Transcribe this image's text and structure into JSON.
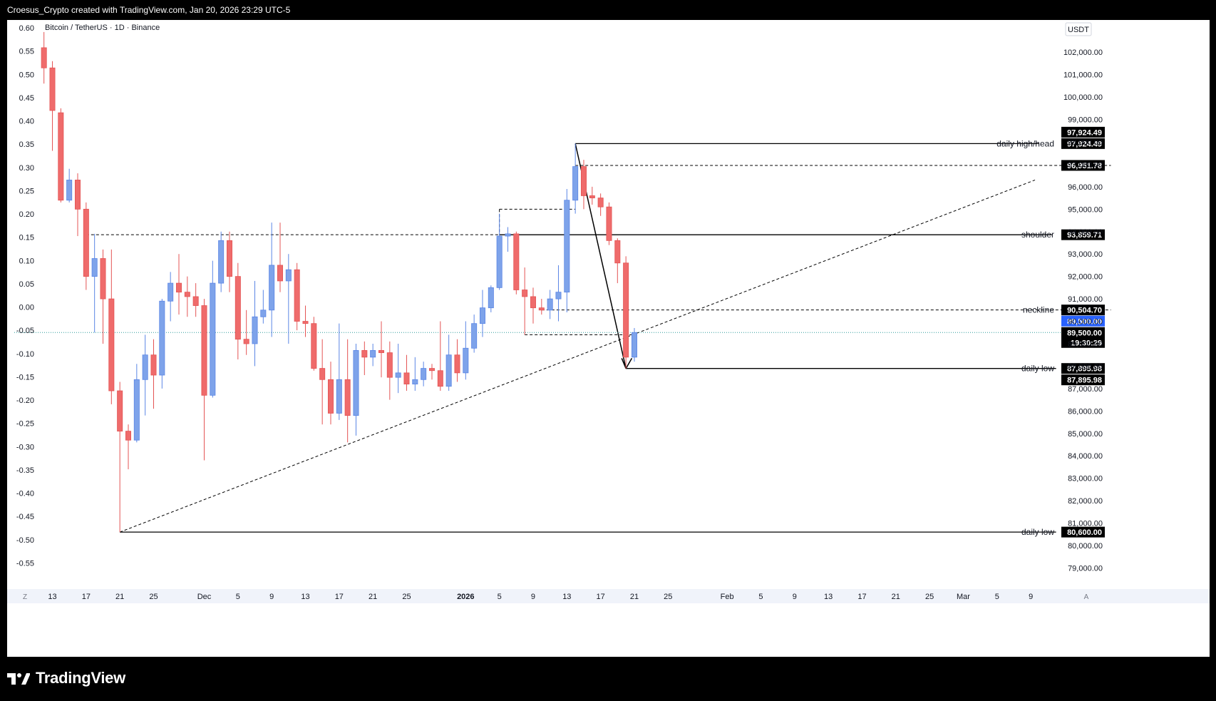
{
  "header": {
    "attribution": "Croesus_Crypto created with TradingView.com, Jan 20, 2026 23:29 UTC-5"
  },
  "footer": {
    "logo_text": "TradingView"
  },
  "symbol": "Bitcoin / TetherUS · 1D · Binance",
  "currency": "USDT",
  "left_axis_ticks": [
    "0.60",
    "0.55",
    "0.50",
    "0.45",
    "0.40",
    "0.35",
    "0.30",
    "0.25",
    "0.20",
    "0.15",
    "0.10",
    "0.05",
    "0.00",
    "-0.05",
    "-0.10",
    "-0.15",
    "-0.20",
    "-0.25",
    "-0.30",
    "-0.35",
    "-0.40",
    "-0.45",
    "-0.50",
    "-0.55"
  ],
  "right_axis_ticks": [
    "102,000.00",
    "101,000.00",
    "100,000.00",
    "99,000.00",
    "98,000.00",
    "97,000.00",
    "96,000.00",
    "95,000.00",
    "94,000.00",
    "93,000.00",
    "92,000.00",
    "91,000.00",
    "90,000.00",
    "89,000.00",
    "88,000.00",
    "87,000.00",
    "86,000.00",
    "85,000.00",
    "84,000.00",
    "83,000.00",
    "82,000.00",
    "81,000.00",
    "80,000.00",
    "79,000.00"
  ],
  "x_axis_labels": [
    {
      "text": "13",
      "bold": false,
      "day": 0
    },
    {
      "text": "17",
      "bold": false,
      "day": 4
    },
    {
      "text": "21",
      "bold": false,
      "day": 8
    },
    {
      "text": "25",
      "bold": false,
      "day": 12
    },
    {
      "text": "Dec",
      "bold": false,
      "day": 18
    },
    {
      "text": "5",
      "bold": false,
      "day": 22
    },
    {
      "text": "9",
      "bold": false,
      "day": 26
    },
    {
      "text": "13",
      "bold": false,
      "day": 30
    },
    {
      "text": "17",
      "bold": false,
      "day": 34
    },
    {
      "text": "21",
      "bold": false,
      "day": 38
    },
    {
      "text": "25",
      "bold": false,
      "day": 42
    },
    {
      "text": "2026",
      "bold": true,
      "day": 49
    },
    {
      "text": "5",
      "bold": false,
      "day": 53
    },
    {
      "text": "9",
      "bold": false,
      "day": 57
    },
    {
      "text": "13",
      "bold": false,
      "day": 61
    },
    {
      "text": "17",
      "bold": false,
      "day": 65
    },
    {
      "text": "21",
      "bold": false,
      "day": 69
    },
    {
      "text": "25",
      "bold": false,
      "day": 73
    },
    {
      "text": "Feb",
      "bold": false,
      "day": 80
    },
    {
      "text": "5",
      "bold": false,
      "day": 84
    },
    {
      "text": "9",
      "bold": false,
      "day": 88
    },
    {
      "text": "13",
      "bold": false,
      "day": 92
    },
    {
      "text": "17",
      "bold": false,
      "day": 96
    },
    {
      "text": "21",
      "bold": false,
      "day": 100
    },
    {
      "text": "25",
      "bold": false,
      "day": 104
    },
    {
      "text": "Mar",
      "bold": false,
      "day": 108
    },
    {
      "text": "5",
      "bold": false,
      "day": 112
    },
    {
      "text": "9",
      "bold": false,
      "day": 116
    }
  ],
  "axis_corner_left": "Z",
  "axis_corner_right": "A",
  "colors": {
    "up": "#7ea3ea",
    "down": "#ef6b6b",
    "up_wick": "#5b86e5",
    "down_wick": "#e45454",
    "line": "#000000",
    "current": "#2962ff"
  },
  "chart_data": {
    "type": "candlestick",
    "title": "Bitcoin / TetherUS · 1D · Binance",
    "timeframe": "1D",
    "ylim": [
      78400,
      102600
    ],
    "x_note": "day index, 0 = Nov 13 2025",
    "candles": [
      {
        "d": -1,
        "o": 102200,
        "h": 102900,
        "l": 100600,
        "c": 101300
      },
      {
        "d": 0,
        "o": 101300,
        "h": 101600,
        "l": 97600,
        "c": 99400
      },
      {
        "d": 1,
        "o": 99300,
        "h": 99500,
        "l": 95300,
        "c": 95400
      },
      {
        "d": 2,
        "o": 95400,
        "h": 96800,
        "l": 95300,
        "c": 96300
      },
      {
        "d": 3,
        "o": 96300,
        "h": 96600,
        "l": 93800,
        "c": 95000
      },
      {
        "d": 4,
        "o": 95000,
        "h": 95300,
        "l": 91400,
        "c": 92000
      },
      {
        "d": 5,
        "o": 92000,
        "h": 93900,
        "l": 89500,
        "c": 92800
      },
      {
        "d": 6,
        "o": 92800,
        "h": 93200,
        "l": 89000,
        "c": 91000
      },
      {
        "d": 7,
        "o": 91000,
        "h": 93200,
        "l": 86300,
        "c": 86900
      },
      {
        "d": 8,
        "o": 86900,
        "h": 87300,
        "l": 80600,
        "c": 85100
      },
      {
        "d": 9,
        "o": 85100,
        "h": 85400,
        "l": 83400,
        "c": 84700
      },
      {
        "d": 10,
        "o": 84700,
        "h": 88100,
        "l": 84600,
        "c": 87400
      },
      {
        "d": 11,
        "o": 87400,
        "h": 89400,
        "l": 85800,
        "c": 88500
      },
      {
        "d": 12,
        "o": 88500,
        "h": 89200,
        "l": 86100,
        "c": 87600
      },
      {
        "d": 13,
        "o": 87600,
        "h": 91000,
        "l": 87000,
        "c": 90900
      },
      {
        "d": 14,
        "o": 90900,
        "h": 92200,
        "l": 90000,
        "c": 91700
      },
      {
        "d": 15,
        "o": 91700,
        "h": 93000,
        "l": 90300,
        "c": 91300
      },
      {
        "d": 16,
        "o": 91300,
        "h": 92000,
        "l": 90200,
        "c": 91100
      },
      {
        "d": 17,
        "o": 91100,
        "h": 91700,
        "l": 90200,
        "c": 90700
      },
      {
        "d": 18,
        "o": 90700,
        "h": 91000,
        "l": 83800,
        "c": 86700
      },
      {
        "d": 19,
        "o": 86700,
        "h": 92700,
        "l": 86600,
        "c": 91700
      },
      {
        "d": 20,
        "o": 91700,
        "h": 94000,
        "l": 91300,
        "c": 93600
      },
      {
        "d": 21,
        "o": 93600,
        "h": 94000,
        "l": 91300,
        "c": 92000
      },
      {
        "d": 22,
        "o": 92000,
        "h": 92600,
        "l": 88300,
        "c": 89200
      },
      {
        "d": 23,
        "o": 89200,
        "h": 90500,
        "l": 88500,
        "c": 89000
      },
      {
        "d": 24,
        "o": 89000,
        "h": 91800,
        "l": 88000,
        "c": 90200
      },
      {
        "d": 25,
        "o": 90200,
        "h": 91400,
        "l": 89900,
        "c": 90500
      },
      {
        "d": 26,
        "o": 90500,
        "h": 94400,
        "l": 89300,
        "c": 92500
      },
      {
        "d": 27,
        "o": 92500,
        "h": 94400,
        "l": 91300,
        "c": 91800
      },
      {
        "d": 28,
        "o": 91800,
        "h": 93000,
        "l": 89000,
        "c": 92300
      },
      {
        "d": 29,
        "o": 92300,
        "h": 92600,
        "l": 89600,
        "c": 90000
      },
      {
        "d": 30,
        "o": 90000,
        "h": 90700,
        "l": 89300,
        "c": 89900
      },
      {
        "d": 31,
        "o": 89900,
        "h": 90200,
        "l": 87800,
        "c": 87900
      },
      {
        "d": 32,
        "o": 87900,
        "h": 89200,
        "l": 85400,
        "c": 87400
      },
      {
        "d": 33,
        "o": 87400,
        "h": 88200,
        "l": 85400,
        "c": 85900
      },
      {
        "d": 34,
        "o": 85900,
        "h": 89900,
        "l": 85600,
        "c": 87400
      },
      {
        "d": 35,
        "o": 87400,
        "h": 89200,
        "l": 84600,
        "c": 85800
      },
      {
        "d": 36,
        "o": 85800,
        "h": 89000,
        "l": 84900,
        "c": 88700
      },
      {
        "d": 37,
        "o": 88700,
        "h": 89100,
        "l": 87600,
        "c": 88400
      },
      {
        "d": 38,
        "o": 88400,
        "h": 89000,
        "l": 88000,
        "c": 88700
      },
      {
        "d": 39,
        "o": 88700,
        "h": 90000,
        "l": 87500,
        "c": 88600
      },
      {
        "d": 40,
        "o": 88600,
        "h": 89100,
        "l": 86500,
        "c": 87500
      },
      {
        "d": 41,
        "o": 87500,
        "h": 89000,
        "l": 86800,
        "c": 87700
      },
      {
        "d": 42,
        "o": 87700,
        "h": 88500,
        "l": 86900,
        "c": 87200
      },
      {
        "d": 43,
        "o": 87200,
        "h": 88400,
        "l": 86900,
        "c": 87400
      },
      {
        "d": 44,
        "o": 87400,
        "h": 88200,
        "l": 87100,
        "c": 87900
      },
      {
        "d": 45,
        "o": 87900,
        "h": 88100,
        "l": 87400,
        "c": 87800
      },
      {
        "d": 46,
        "o": 87800,
        "h": 90000,
        "l": 86900,
        "c": 87100
      },
      {
        "d": 47,
        "o": 87100,
        "h": 89400,
        "l": 86900,
        "c": 88500
      },
      {
        "d": 48,
        "o": 88500,
        "h": 89200,
        "l": 87300,
        "c": 87700
      },
      {
        "d": 49,
        "o": 87700,
        "h": 90000,
        "l": 87400,
        "c": 88800
      },
      {
        "d": 50,
        "o": 88800,
        "h": 90300,
        "l": 88600,
        "c": 89900
      },
      {
        "d": 51,
        "o": 89900,
        "h": 91400,
        "l": 89300,
        "c": 90600
      },
      {
        "d": 52,
        "o": 90600,
        "h": 91600,
        "l": 90400,
        "c": 91500
      },
      {
        "d": 53,
        "o": 91500,
        "h": 94800,
        "l": 91400,
        "c": 93800
      },
      {
        "d": 54,
        "o": 93800,
        "h": 94200,
        "l": 93100,
        "c": 93900
      },
      {
        "d": 55,
        "o": 93900,
        "h": 94000,
        "l": 91200,
        "c": 91400
      },
      {
        "d": 56,
        "o": 91400,
        "h": 92400,
        "l": 89400,
        "c": 91100
      },
      {
        "d": 57,
        "o": 91100,
        "h": 91500,
        "l": 89900,
        "c": 90600
      },
      {
        "d": 58,
        "o": 90600,
        "h": 91000,
        "l": 90300,
        "c": 90500
      },
      {
        "d": 59,
        "o": 90500,
        "h": 91400,
        "l": 90100,
        "c": 91000
      },
      {
        "d": 60,
        "o": 91000,
        "h": 92500,
        "l": 90000,
        "c": 91300
      },
      {
        "d": 61,
        "o": 91300,
        "h": 95900,
        "l": 90400,
        "c": 95400
      },
      {
        "d": 62,
        "o": 95400,
        "h": 97924.49,
        "l": 94800,
        "c": 96900
      },
      {
        "d": 63,
        "o": 96900,
        "h": 97200,
        "l": 95000,
        "c": 95600
      },
      {
        "d": 64,
        "o": 95600,
        "h": 96000,
        "l": 95200,
        "c": 95500
      },
      {
        "d": 65,
        "o": 95500,
        "h": 95700,
        "l": 94700,
        "c": 95100
      },
      {
        "d": 66,
        "o": 95100,
        "h": 95300,
        "l": 93400,
        "c": 93600
      },
      {
        "d": 67,
        "o": 93600,
        "h": 93700,
        "l": 91700,
        "c": 92600
      },
      {
        "d": 68,
        "o": 92600,
        "h": 92900,
        "l": 87895.98,
        "c": 88400
      },
      {
        "d": 69,
        "o": 88400,
        "h": 89700,
        "l": 88200,
        "c": 89500
      }
    ]
  },
  "annotations": {
    "daily_high_head": {
      "label": "daily high/head",
      "price": 97924.49,
      "price_text": "97,924.49",
      "price_text_2": "97,924.49"
    },
    "dashed_96951": {
      "price": 96951.78,
      "price_text": "96,951.78"
    },
    "shoulder": {
      "label": "shoulder",
      "price": 93859.71,
      "price_text": "93,859.71"
    },
    "neckline": {
      "label": "neckline",
      "price": 90504.7,
      "price_text": "90,504.70"
    },
    "current": {
      "price": 89500,
      "price_text": "89,500.00",
      "price_text_2": "89,500.00",
      "countdown": "19:30:29"
    },
    "daily_low_1": {
      "label": "daily low",
      "price": 87895.98,
      "price_text": "87,895.98",
      "price_text_2": "87,895.98"
    },
    "daily_low_2": {
      "label": "daily low",
      "price": 80600,
      "price_text": "80,600.00"
    }
  }
}
